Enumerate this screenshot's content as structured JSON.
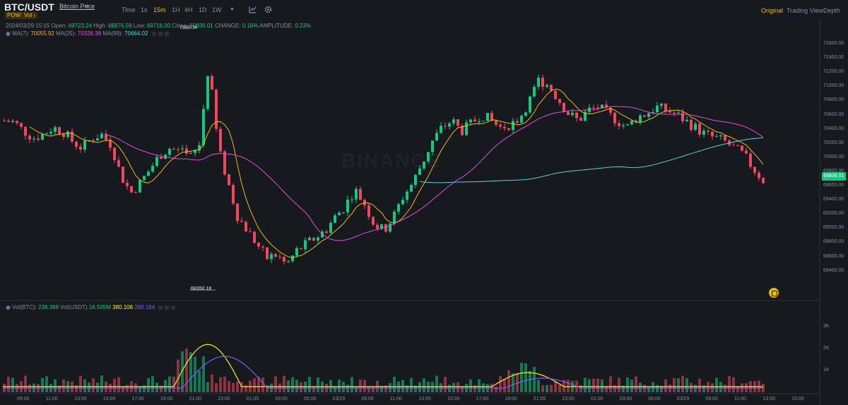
{
  "header": {
    "pair": "BTC/USDT",
    "subtitle": "Bitcoin Price",
    "badges": [
      "POW",
      "Vol ›"
    ],
    "timeframes": [
      "Time",
      "1s",
      "15m",
      "1H",
      "4H",
      "1D",
      "1W"
    ],
    "active_timeframe": "15m",
    "views": [
      "Original",
      "Trading View",
      "Depth"
    ],
    "active_view": "Original",
    "icons": [
      "dropdown-icon",
      "indicator-icon",
      "settings-icon"
    ]
  },
  "ohlc": {
    "date": "2024/03/29 15:15",
    "open_label": "Open:",
    "open": "69723.24",
    "high_label": "High:",
    "high": "69876.59",
    "low_label": "Low:",
    "low": "69716.00",
    "close_label": "Close:",
    "close": "69836.01",
    "change_label": "CHANGE:",
    "change": "0.16%",
    "amplitude_label": "AMPLITUDE:",
    "amplitude": "0.23%"
  },
  "ma": {
    "ma7_label": "MA(7):",
    "ma7": "70055.92",
    "ma25_label": "MA(25):",
    "ma25": "70326.38",
    "ma99_label": "MA(99):",
    "ma99": "70664.02"
  },
  "volume_legend": {
    "label_btc": "Vol(BTC):",
    "btc": "236.388",
    "label_usdt": "Vol(USDT)",
    "usdt": "16.505M",
    "v1": "380.106",
    "v2": "288.184"
  },
  "price_axis": [
    "71600.00",
    "71400.00",
    "71200.00",
    "71000.00",
    "70800.00",
    "70600.00",
    "70400.00",
    "70200.00",
    "70000.00",
    "69800.00",
    "69600.00",
    "69400.00",
    "69200.00",
    "69000.00",
    "68800.00",
    "68600.00",
    "68400.00"
  ],
  "current_price": "69836.01",
  "volume_axis": [
    "3K",
    "2K",
    "1K"
  ],
  "time_axis": [
    "09:00",
    "11:00",
    "13:00",
    "15:00",
    "17:00",
    "19:00",
    "21:00",
    "23:00",
    "01:00",
    "03:00",
    "05:00",
    "03/29",
    "09:00",
    "11:00",
    "13:00",
    "15:00",
    "17:00",
    "19:00",
    "21:00",
    "23:00",
    "01:00",
    "03:00",
    "05:00",
    "03/29",
    "09:00",
    "11:00",
    "13:00",
    "15:00",
    "17:00"
  ],
  "lowest_marker": "68350.18",
  "highest_marker": "71880.34",
  "watermark": "BINANCE",
  "colors": {
    "up": "#0ecb81",
    "down": "#f6465d",
    "ma7": "#f0b90b",
    "ma25": "#e24ddb",
    "ma99": "#50d5d8",
    "accent": "#f0b90b"
  },
  "chart_data": {
    "type": "candlestick",
    "symbol": "BTC/USDT",
    "interval": "15m",
    "price_range": [
      68350,
      71880
    ],
    "key_points": [
      {
        "label": "high",
        "value": 71880.34
      },
      {
        "label": "low",
        "value": 68350.18
      },
      {
        "label": "last_close",
        "value": 69836.01
      }
    ],
    "close_trace": [
      70700,
      70680,
      70550,
      70450,
      70500,
      70600,
      70550,
      70400,
      70300,
      70450,
      70500,
      70350,
      69900,
      69650,
      69800,
      70000,
      70200,
      70300,
      70250,
      70150,
      70300,
      71500,
      70300,
      69800,
      69300,
      69100,
      68900,
      68700,
      68750,
      68600,
      68800,
      68900,
      69000,
      69100,
      69300,
      69450,
      69700,
      69500,
      69200,
      69100,
      69300,
      69600,
      69800,
      70100,
      70400,
      70600,
      70700,
      70550,
      70650,
      70800,
      70700,
      70600,
      70650,
      70750,
      71000,
      71300,
      71200,
      71000,
      70800,
      70700,
      70850,
      70900,
      70800,
      70700,
      70600,
      70750,
      70800,
      70900,
      70850,
      70800,
      70700,
      70600,
      70500,
      70450,
      70400,
      70300,
      70200,
      70000,
      69836
    ]
  }
}
